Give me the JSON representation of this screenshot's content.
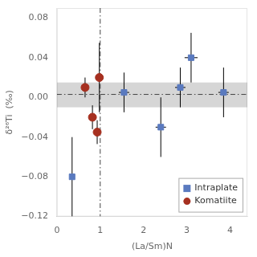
{
  "chart_data": {
    "type": "scatter",
    "xlabel": "(La/Sm)N",
    "ylabel": "δ²⁶Ti  (‰)",
    "series": [
      {
        "name": "Intraplate",
        "color": "#5a7abf",
        "marker": "square",
        "x": [
          0.35,
          1.55,
          2.4,
          2.85,
          3.1,
          3.85
        ],
        "values": [
          -0.08,
          0.005,
          -0.03,
          0.01,
          0.04,
          0.005
        ],
        "xerr": [
          0.05,
          0.12,
          0.12,
          0.12,
          0.15,
          0.12
        ],
        "yerr": [
          0.04,
          0.02,
          0.03,
          0.02,
          0.025,
          0.025
        ]
      },
      {
        "name": "Komatiite",
        "color": "#a63020",
        "marker": "circle",
        "x": [
          0.65,
          0.82,
          0.93,
          0.98
        ],
        "values": [
          0.01,
          -0.02,
          -0.035,
          0.02
        ],
        "xerr": [
          0.04,
          0.03,
          0.03,
          0.03
        ],
        "yerr": [
          0.01,
          0.012,
          0.012,
          0.035
        ]
      }
    ],
    "bands": [
      {
        "ymin": -0.01,
        "ymax": 0.015,
        "color": "#c8c8c8"
      }
    ],
    "hlines": [
      {
        "y": 0.003,
        "color": "#444444",
        "line_style": "dashdot"
      }
    ],
    "vlines": [
      {
        "x": 1.0,
        "color": "#444444",
        "line_style": "dashdot"
      }
    ],
    "xlim": [
      0,
      4.4
    ],
    "ylim": [
      -0.12,
      0.09
    ],
    "xticks": [
      0,
      1,
      2,
      3,
      4
    ],
    "yticks": [
      {
        "value": -0.12,
        "label": "−0.12"
      },
      {
        "value": -0.08,
        "label": "−0.08"
      },
      {
        "value": -0.04,
        "label": "−0.04"
      },
      {
        "value": 0.0,
        "label": "0.00"
      },
      {
        "value": 0.04,
        "label": "0.04"
      },
      {
        "value": 0.08,
        "label": "0.08"
      }
    ],
    "grid": false,
    "legend": "lower right"
  }
}
